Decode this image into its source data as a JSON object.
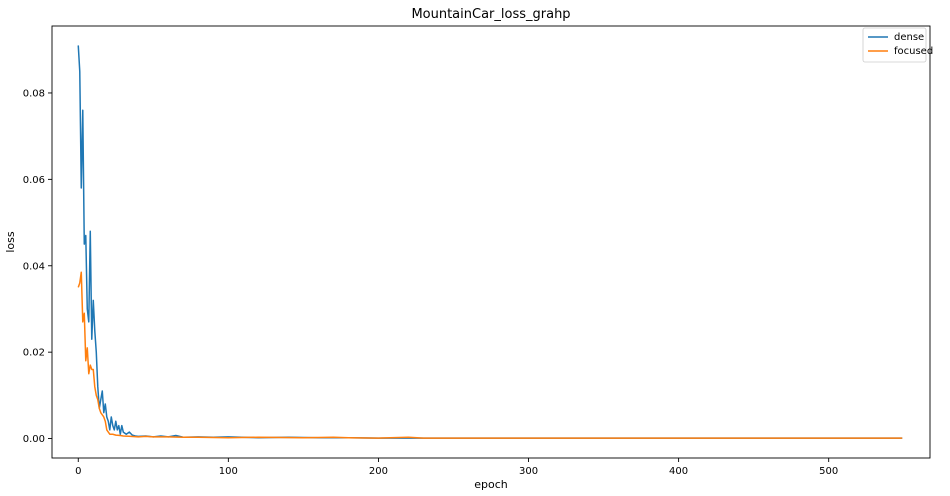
{
  "chart_data": {
    "type": "line",
    "title": "MountainCar_loss_grahp",
    "xlabel": "epoch",
    "ylabel": "loss",
    "xlim": [
      -17.5,
      567.5
    ],
    "ylim": [
      -0.0045,
      0.0955
    ],
    "xticks": [
      0,
      100,
      200,
      300,
      400,
      500
    ],
    "yticks": [
      0.0,
      0.02,
      0.04,
      0.06,
      0.08
    ],
    "ytick_labels": [
      "0.00",
      "0.02",
      "0.04",
      "0.06",
      "0.08"
    ],
    "grid": false,
    "legend_position": "top-right",
    "series": [
      {
        "name": "dense",
        "color": "#1f77b4",
        "points": [
          [
            0,
            0.091
          ],
          [
            1,
            0.085
          ],
          [
            2,
            0.058
          ],
          [
            3,
            0.076
          ],
          [
            4,
            0.045
          ],
          [
            5,
            0.047
          ],
          [
            6,
            0.03
          ],
          [
            7,
            0.027
          ],
          [
            8,
            0.048
          ],
          [
            9,
            0.023
          ],
          [
            10,
            0.032
          ],
          [
            11,
            0.025
          ],
          [
            12,
            0.02
          ],
          [
            13,
            0.012
          ],
          [
            14,
            0.007
          ],
          [
            15,
            0.009
          ],
          [
            16,
            0.011
          ],
          [
            17,
            0.006
          ],
          [
            18,
            0.008
          ],
          [
            19,
            0.005
          ],
          [
            20,
            0.004
          ],
          [
            21,
            0.002
          ],
          [
            22,
            0.005
          ],
          [
            23,
            0.003
          ],
          [
            24,
            0.002
          ],
          [
            25,
            0.004
          ],
          [
            26,
            0.002
          ],
          [
            27,
            0.003
          ],
          [
            28,
            0.001
          ],
          [
            29,
            0.003
          ],
          [
            30,
            0.0015
          ],
          [
            32,
            0.001
          ],
          [
            34,
            0.0015
          ],
          [
            36,
            0.0008
          ],
          [
            38,
            0.0006
          ],
          [
            40,
            0.0005
          ],
          [
            45,
            0.0006
          ],
          [
            50,
            0.0004
          ],
          [
            55,
            0.0006
          ],
          [
            60,
            0.0004
          ],
          [
            65,
            0.0007
          ],
          [
            70,
            0.0003
          ],
          [
            80,
            0.0004
          ],
          [
            90,
            0.0003
          ],
          [
            100,
            0.0004
          ],
          [
            120,
            0.0002
          ],
          [
            140,
            0.0003
          ],
          [
            160,
            0.0002
          ],
          [
            180,
            0.0002
          ],
          [
            200,
            0.0001
          ],
          [
            250,
            0.0001
          ],
          [
            300,
            0.0001
          ],
          [
            350,
            0.0001
          ],
          [
            400,
            0.0001
          ],
          [
            450,
            0.0001
          ],
          [
            500,
            0.0001
          ],
          [
            549,
            0.0001
          ]
        ]
      },
      {
        "name": "focused",
        "color": "#ff7f0e",
        "points": [
          [
            0,
            0.035
          ],
          [
            1,
            0.036
          ],
          [
            2,
            0.0385
          ],
          [
            3,
            0.027
          ],
          [
            4,
            0.029
          ],
          [
            5,
            0.018
          ],
          [
            6,
            0.021
          ],
          [
            7,
            0.015
          ],
          [
            8,
            0.017
          ],
          [
            9,
            0.016
          ],
          [
            10,
            0.016
          ],
          [
            11,
            0.012
          ],
          [
            12,
            0.01
          ],
          [
            13,
            0.009
          ],
          [
            14,
            0.007
          ],
          [
            15,
            0.006
          ],
          [
            16,
            0.0055
          ],
          [
            17,
            0.005
          ],
          [
            18,
            0.004
          ],
          [
            19,
            0.002
          ],
          [
            20,
            0.0015
          ],
          [
            21,
            0.001
          ],
          [
            23,
            0.001
          ],
          [
            25,
            0.0008
          ],
          [
            28,
            0.0007
          ],
          [
            30,
            0.0006
          ],
          [
            35,
            0.0005
          ],
          [
            40,
            0.0004
          ],
          [
            45,
            0.0005
          ],
          [
            50,
            0.0004
          ],
          [
            60,
            0.0004
          ],
          [
            70,
            0.0003
          ],
          [
            80,
            0.0003
          ],
          [
            100,
            0.0002
          ],
          [
            120,
            0.0003
          ],
          [
            150,
            0.0002
          ],
          [
            170,
            0.0003
          ],
          [
            180,
            0.0002
          ],
          [
            200,
            0.0001
          ],
          [
            220,
            0.0003
          ],
          [
            230,
            0.0001
          ],
          [
            250,
            0.0001
          ],
          [
            300,
            0.0001
          ],
          [
            350,
            0.0001
          ],
          [
            400,
            0.0001
          ],
          [
            450,
            0.0001
          ],
          [
            500,
            0.0001
          ],
          [
            549,
            0.0001
          ]
        ]
      }
    ]
  }
}
